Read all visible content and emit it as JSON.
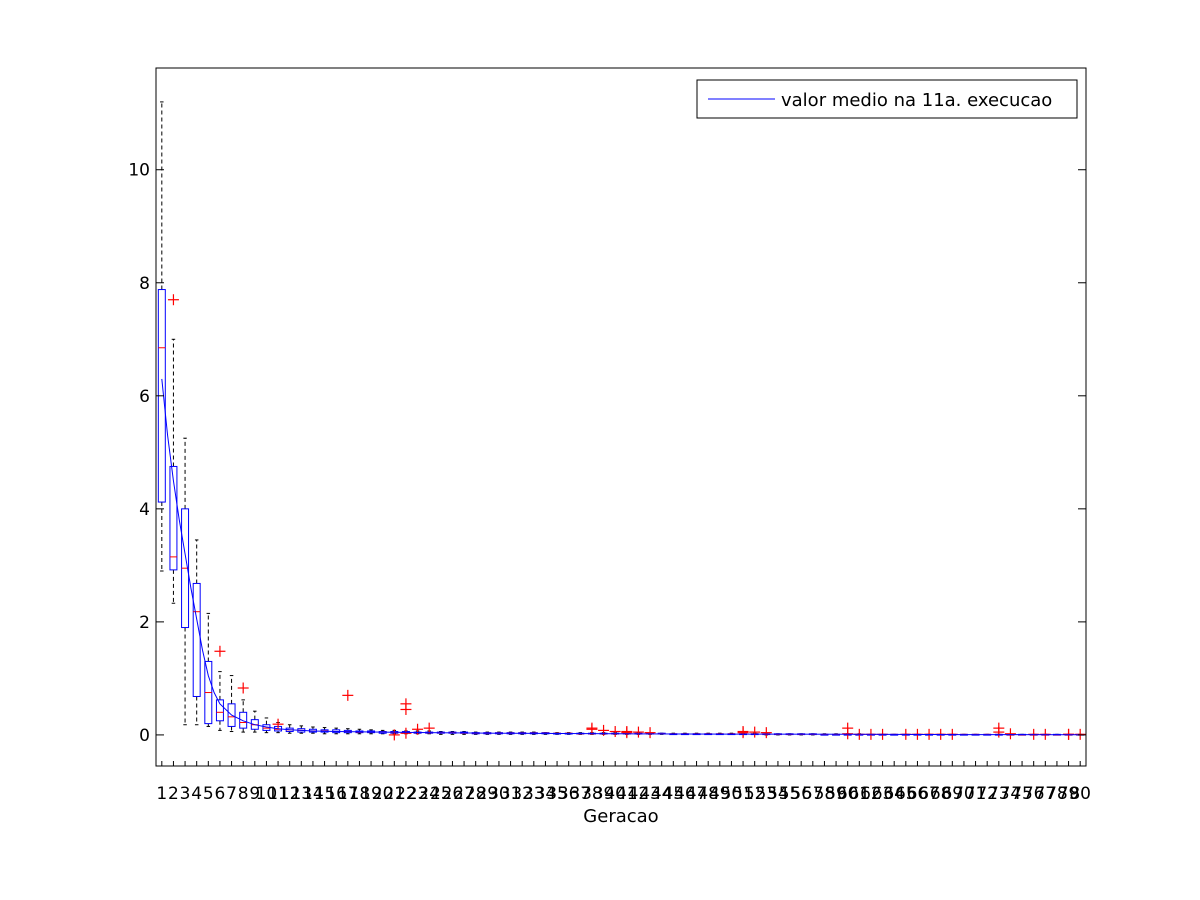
{
  "chart_data": {
    "type": "box",
    "xlabel": "Geracao",
    "ylabel": "",
    "ylim": [
      -0.55,
      11.8
    ],
    "yticks": [
      0,
      2,
      4,
      6,
      8,
      10
    ],
    "xlim": [
      0.5,
      80.5
    ],
    "legend": {
      "placement": "top-right",
      "entries": [
        "valor medio na 11a. execucao"
      ]
    },
    "colors": {
      "box": "#0000ff",
      "median": "#ff0000",
      "whisker": "#000000",
      "outlier": "#ff0000",
      "mean_line": "#0000ff",
      "axis": "#000000"
    },
    "boxes": [
      {
        "x": 1,
        "q1": 4.12,
        "median": 6.85,
        "q3": 7.88,
        "lo": 2.9,
        "hi": 11.2,
        "outliers": []
      },
      {
        "x": 2,
        "q1": 2.92,
        "median": 3.15,
        "q3": 4.75,
        "lo": 2.33,
        "hi": 7.0,
        "outliers": [
          7.7
        ]
      },
      {
        "x": 3,
        "q1": 1.9,
        "median": 2.95,
        "q3": 4.0,
        "lo": 0.18,
        "hi": 5.25,
        "outliers": []
      },
      {
        "x": 4,
        "q1": 0.68,
        "median": 2.18,
        "q3": 2.68,
        "lo": 0.18,
        "hi": 3.45,
        "outliers": []
      },
      {
        "x": 5,
        "q1": 0.2,
        "median": 0.75,
        "q3": 1.3,
        "lo": 0.15,
        "hi": 2.15,
        "outliers": []
      },
      {
        "x": 6,
        "q1": 0.25,
        "median": 0.4,
        "q3": 0.62,
        "lo": 0.08,
        "hi": 1.12,
        "outliers": [
          1.48
        ]
      },
      {
        "x": 7,
        "q1": 0.15,
        "median": 0.32,
        "q3": 0.55,
        "lo": 0.06,
        "hi": 1.05,
        "outliers": []
      },
      {
        "x": 8,
        "q1": 0.12,
        "median": 0.22,
        "q3": 0.4,
        "lo": 0.05,
        "hi": 0.62,
        "outliers": [
          0.83
        ]
      },
      {
        "x": 9,
        "q1": 0.1,
        "median": 0.18,
        "q3": 0.27,
        "lo": 0.05,
        "hi": 0.42,
        "outliers": []
      },
      {
        "x": 10,
        "q1": 0.08,
        "median": 0.12,
        "q3": 0.18,
        "lo": 0.04,
        "hi": 0.3,
        "outliers": []
      },
      {
        "x": 11,
        "q1": 0.07,
        "median": 0.1,
        "q3": 0.15,
        "lo": 0.04,
        "hi": 0.22,
        "outliers": [
          0.19
        ]
      },
      {
        "x": 12,
        "q1": 0.06,
        "median": 0.09,
        "q3": 0.12,
        "lo": 0.03,
        "hi": 0.18,
        "outliers": []
      },
      {
        "x": 13,
        "q1": 0.05,
        "median": 0.08,
        "q3": 0.11,
        "lo": 0.03,
        "hi": 0.16,
        "outliers": []
      },
      {
        "x": 14,
        "q1": 0.05,
        "median": 0.07,
        "q3": 0.1,
        "lo": 0.03,
        "hi": 0.14,
        "outliers": []
      },
      {
        "x": 15,
        "q1": 0.05,
        "median": 0.07,
        "q3": 0.09,
        "lo": 0.02,
        "hi": 0.13,
        "outliers": []
      },
      {
        "x": 16,
        "q1": 0.04,
        "median": 0.06,
        "q3": 0.09,
        "lo": 0.02,
        "hi": 0.12,
        "outliers": []
      },
      {
        "x": 17,
        "q1": 0.04,
        "median": 0.06,
        "q3": 0.08,
        "lo": 0.02,
        "hi": 0.11,
        "outliers": [
          0.7
        ]
      },
      {
        "x": 18,
        "q1": 0.04,
        "median": 0.05,
        "q3": 0.07,
        "lo": 0.02,
        "hi": 0.1,
        "outliers": []
      },
      {
        "x": 19,
        "q1": 0.04,
        "median": 0.05,
        "q3": 0.07,
        "lo": 0.02,
        "hi": 0.09,
        "outliers": []
      },
      {
        "x": 20,
        "q1": 0.03,
        "median": 0.05,
        "q3": 0.06,
        "lo": 0.02,
        "hi": 0.08,
        "outliers": []
      },
      {
        "x": 21,
        "q1": 0.03,
        "median": 0.04,
        "q3": 0.06,
        "lo": 0.02,
        "hi": 0.08,
        "outliers": [
          0.0
        ]
      },
      {
        "x": 22,
        "q1": 0.03,
        "median": 0.04,
        "q3": 0.06,
        "lo": 0.02,
        "hi": 0.07,
        "outliers": [
          0.03,
          0.45,
          0.55
        ]
      },
      {
        "x": 23,
        "q1": 0.03,
        "median": 0.04,
        "q3": 0.05,
        "lo": 0.02,
        "hi": 0.07,
        "outliers": [
          0.1
        ]
      },
      {
        "x": 24,
        "q1": 0.03,
        "median": 0.04,
        "q3": 0.05,
        "lo": 0.02,
        "hi": 0.07,
        "outliers": [
          0.12
        ]
      },
      {
        "x": 25,
        "q1": 0.03,
        "median": 0.04,
        "q3": 0.05,
        "lo": 0.01,
        "hi": 0.06,
        "outliers": []
      },
      {
        "x": 26,
        "q1": 0.03,
        "median": 0.04,
        "q3": 0.05,
        "lo": 0.01,
        "hi": 0.06,
        "outliers": []
      },
      {
        "x": 27,
        "q1": 0.03,
        "median": 0.03,
        "q3": 0.05,
        "lo": 0.01,
        "hi": 0.06,
        "outliers": []
      },
      {
        "x": 28,
        "q1": 0.02,
        "median": 0.03,
        "q3": 0.04,
        "lo": 0.01,
        "hi": 0.05,
        "outliers": []
      },
      {
        "x": 29,
        "q1": 0.02,
        "median": 0.03,
        "q3": 0.04,
        "lo": 0.01,
        "hi": 0.05,
        "outliers": []
      },
      {
        "x": 30,
        "q1": 0.02,
        "median": 0.03,
        "q3": 0.04,
        "lo": 0.01,
        "hi": 0.05,
        "outliers": []
      },
      {
        "x": 31,
        "q1": 0.02,
        "median": 0.03,
        "q3": 0.04,
        "lo": 0.01,
        "hi": 0.05,
        "outliers": []
      },
      {
        "x": 32,
        "q1": 0.02,
        "median": 0.03,
        "q3": 0.04,
        "lo": 0.01,
        "hi": 0.05,
        "outliers": []
      },
      {
        "x": 33,
        "q1": 0.02,
        "median": 0.03,
        "q3": 0.04,
        "lo": 0.01,
        "hi": 0.05,
        "outliers": []
      },
      {
        "x": 34,
        "q1": 0.02,
        "median": 0.03,
        "q3": 0.04,
        "lo": 0.01,
        "hi": 0.04,
        "outliers": []
      },
      {
        "x": 35,
        "q1": 0.02,
        "median": 0.03,
        "q3": 0.03,
        "lo": 0.01,
        "hi": 0.04,
        "outliers": []
      },
      {
        "x": 36,
        "q1": 0.02,
        "median": 0.03,
        "q3": 0.03,
        "lo": 0.01,
        "hi": 0.04,
        "outliers": []
      },
      {
        "x": 37,
        "q1": 0.02,
        "median": 0.02,
        "q3": 0.03,
        "lo": 0.01,
        "hi": 0.04,
        "outliers": []
      },
      {
        "x": 38,
        "q1": 0.02,
        "median": 0.02,
        "q3": 0.03,
        "lo": 0.01,
        "hi": 0.04,
        "outliers": [
          0.1,
          0.12
        ]
      },
      {
        "x": 39,
        "q1": 0.02,
        "median": 0.02,
        "q3": 0.03,
        "lo": 0.01,
        "hi": 0.04,
        "outliers": [
          0.08
        ]
      },
      {
        "x": 40,
        "q1": 0.02,
        "median": 0.02,
        "q3": 0.03,
        "lo": 0.01,
        "hi": 0.04,
        "outliers": [
          0.06
        ]
      },
      {
        "x": 41,
        "q1": 0.02,
        "median": 0.02,
        "q3": 0.03,
        "lo": 0.01,
        "hi": 0.04,
        "outliers": [
          0.06,
          0.04
        ]
      },
      {
        "x": 42,
        "q1": 0.02,
        "median": 0.02,
        "q3": 0.03,
        "lo": 0.01,
        "hi": 0.04,
        "outliers": [
          0.05
        ]
      },
      {
        "x": 43,
        "q1": 0.02,
        "median": 0.02,
        "q3": 0.03,
        "lo": 0.01,
        "hi": 0.03,
        "outliers": [
          0.04
        ]
      },
      {
        "x": 44,
        "q1": 0.02,
        "median": 0.02,
        "q3": 0.03,
        "lo": 0.01,
        "hi": 0.03,
        "outliers": []
      },
      {
        "x": 45,
        "q1": 0.01,
        "median": 0.02,
        "q3": 0.02,
        "lo": 0.01,
        "hi": 0.03,
        "outliers": []
      },
      {
        "x": 46,
        "q1": 0.01,
        "median": 0.02,
        "q3": 0.02,
        "lo": 0.01,
        "hi": 0.03,
        "outliers": []
      },
      {
        "x": 47,
        "q1": 0.01,
        "median": 0.02,
        "q3": 0.02,
        "lo": 0.01,
        "hi": 0.03,
        "outliers": []
      },
      {
        "x": 48,
        "q1": 0.01,
        "median": 0.02,
        "q3": 0.02,
        "lo": 0.01,
        "hi": 0.03,
        "outliers": []
      },
      {
        "x": 49,
        "q1": 0.01,
        "median": 0.02,
        "q3": 0.02,
        "lo": 0.01,
        "hi": 0.03,
        "outliers": []
      },
      {
        "x": 50,
        "q1": 0.01,
        "median": 0.02,
        "q3": 0.02,
        "lo": 0.01,
        "hi": 0.03,
        "outliers": []
      },
      {
        "x": 51,
        "q1": 0.01,
        "median": 0.02,
        "q3": 0.02,
        "lo": 0.01,
        "hi": 0.03,
        "outliers": [
          0.06,
          0.04
        ]
      },
      {
        "x": 52,
        "q1": 0.01,
        "median": 0.02,
        "q3": 0.02,
        "lo": 0.01,
        "hi": 0.03,
        "outliers": [
          0.05
        ]
      },
      {
        "x": 53,
        "q1": 0.01,
        "median": 0.01,
        "q3": 0.02,
        "lo": 0.0,
        "hi": 0.02,
        "outliers": [
          0.04
        ]
      },
      {
        "x": 54,
        "q1": 0.01,
        "median": 0.01,
        "q3": 0.02,
        "lo": 0.0,
        "hi": 0.02,
        "outliers": []
      },
      {
        "x": 55,
        "q1": 0.01,
        "median": 0.01,
        "q3": 0.02,
        "lo": 0.0,
        "hi": 0.02,
        "outliers": []
      },
      {
        "x": 56,
        "q1": 0.01,
        "median": 0.01,
        "q3": 0.02,
        "lo": 0.0,
        "hi": 0.02,
        "outliers": []
      },
      {
        "x": 57,
        "q1": 0.01,
        "median": 0.01,
        "q3": 0.02,
        "lo": 0.0,
        "hi": 0.02,
        "outliers": []
      },
      {
        "x": 58,
        "q1": 0.01,
        "median": 0.01,
        "q3": 0.01,
        "lo": 0.0,
        "hi": 0.02,
        "outliers": []
      },
      {
        "x": 59,
        "q1": 0.01,
        "median": 0.01,
        "q3": 0.01,
        "lo": 0.0,
        "hi": 0.02,
        "outliers": []
      },
      {
        "x": 60,
        "q1": 0.01,
        "median": 0.01,
        "q3": 0.01,
        "lo": 0.0,
        "hi": 0.02,
        "outliers": [
          0.12,
          0.02
        ]
      },
      {
        "x": 61,
        "q1": 0.01,
        "median": 0.01,
        "q3": 0.01,
        "lo": 0.0,
        "hi": 0.02,
        "outliers": [
          0.01
        ]
      },
      {
        "x": 62,
        "q1": 0.0,
        "median": 0.01,
        "q3": 0.01,
        "lo": 0.0,
        "hi": 0.01,
        "outliers": [
          0.01
        ]
      },
      {
        "x": 63,
        "q1": 0.0,
        "median": 0.01,
        "q3": 0.01,
        "lo": 0.0,
        "hi": 0.01,
        "outliers": [
          0.01
        ]
      },
      {
        "x": 64,
        "q1": 0.0,
        "median": 0.01,
        "q3": 0.01,
        "lo": 0.0,
        "hi": 0.01,
        "outliers": []
      },
      {
        "x": 65,
        "q1": 0.0,
        "median": 0.01,
        "q3": 0.01,
        "lo": 0.0,
        "hi": 0.01,
        "outliers": [
          0.01
        ]
      },
      {
        "x": 66,
        "q1": 0.0,
        "median": 0.01,
        "q3": 0.01,
        "lo": 0.0,
        "hi": 0.01,
        "outliers": [
          0.01
        ]
      },
      {
        "x": 67,
        "q1": 0.0,
        "median": 0.01,
        "q3": 0.01,
        "lo": 0.0,
        "hi": 0.01,
        "outliers": [
          0.01
        ]
      },
      {
        "x": 68,
        "q1": 0.0,
        "median": 0.01,
        "q3": 0.01,
        "lo": 0.0,
        "hi": 0.01,
        "outliers": [
          0.01
        ]
      },
      {
        "x": 69,
        "q1": 0.0,
        "median": 0.01,
        "q3": 0.01,
        "lo": 0.0,
        "hi": 0.01,
        "outliers": [
          0.01
        ]
      },
      {
        "x": 70,
        "q1": 0.0,
        "median": 0.01,
        "q3": 0.01,
        "lo": 0.0,
        "hi": 0.01,
        "outliers": []
      },
      {
        "x": 71,
        "q1": 0.0,
        "median": 0.01,
        "q3": 0.01,
        "lo": 0.0,
        "hi": 0.01,
        "outliers": []
      },
      {
        "x": 72,
        "q1": 0.0,
        "median": 0.01,
        "q3": 0.01,
        "lo": 0.0,
        "hi": 0.01,
        "outliers": []
      },
      {
        "x": 73,
        "q1": 0.0,
        "median": 0.01,
        "q3": 0.01,
        "lo": 0.0,
        "hi": 0.01,
        "outliers": [
          0.12,
          0.05
        ]
      },
      {
        "x": 74,
        "q1": 0.0,
        "median": 0.0,
        "q3": 0.01,
        "lo": 0.0,
        "hi": 0.01,
        "outliers": [
          0.02
        ]
      },
      {
        "x": 75,
        "q1": 0.0,
        "median": 0.0,
        "q3": 0.01,
        "lo": 0.0,
        "hi": 0.01,
        "outliers": []
      },
      {
        "x": 76,
        "q1": 0.0,
        "median": 0.0,
        "q3": 0.01,
        "lo": 0.0,
        "hi": 0.01,
        "outliers": [
          0.01
        ]
      },
      {
        "x": 77,
        "q1": 0.0,
        "median": 0.0,
        "q3": 0.01,
        "lo": 0.0,
        "hi": 0.01,
        "outliers": [
          0.01
        ]
      },
      {
        "x": 78,
        "q1": 0.0,
        "median": 0.0,
        "q3": 0.01,
        "lo": 0.0,
        "hi": 0.01,
        "outliers": []
      },
      {
        "x": 79,
        "q1": 0.0,
        "median": 0.0,
        "q3": 0.01,
        "lo": 0.0,
        "hi": 0.01,
        "outliers": [
          0.01,
          0.01
        ]
      },
      {
        "x": 80,
        "q1": 0.0,
        "median": 0.0,
        "q3": 0.01,
        "lo": 0.0,
        "hi": 0.01,
        "outliers": [
          0.01
        ]
      }
    ],
    "mean_series": {
      "name": "valor medio na 11a. execucao",
      "x": [
        1,
        1.5,
        2,
        2.5,
        3,
        3.5,
        4,
        4.5,
        5,
        5.5,
        6,
        7,
        8,
        9,
        10,
        11,
        12,
        14,
        16,
        20,
        25,
        30,
        40,
        50,
        60,
        70,
        80
      ],
      "y": [
        6.3,
        5.3,
        4.5,
        3.8,
        3.2,
        2.6,
        2.05,
        1.5,
        1.05,
        0.75,
        0.55,
        0.35,
        0.25,
        0.18,
        0.14,
        0.11,
        0.09,
        0.07,
        0.06,
        0.05,
        0.04,
        0.03,
        0.02,
        0.015,
        0.01,
        0.006,
        0.004
      ]
    }
  }
}
